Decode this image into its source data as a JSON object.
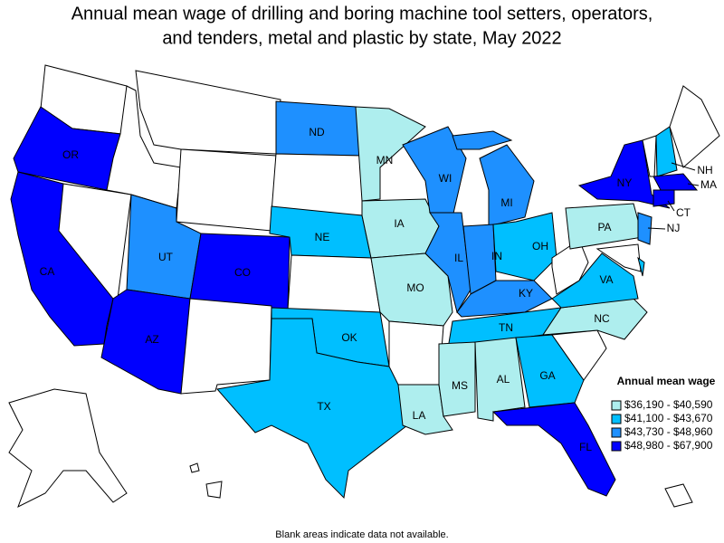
{
  "title": "Annual mean wage of drilling and boring machine tool setters, operators, and tenders, metal and plastic by state, May 2022",
  "legend": {
    "title": "Annual mean wage",
    "items": [
      {
        "label": "$36,190 - $40,590",
        "color": "#aeeeee"
      },
      {
        "label": "$41,100 - $43,670",
        "color": "#00bfff"
      },
      {
        "label": "$43,730 - $48,960",
        "color": "#1e90ff"
      },
      {
        "label": "$48,980 - $67,900",
        "color": "#0000ff"
      }
    ]
  },
  "states": [
    {
      "label": "OR",
      "color": "#0000ff"
    },
    {
      "label": "CA",
      "color": "#0000ff"
    },
    {
      "label": "AZ",
      "color": "#0000ff"
    },
    {
      "label": "CO",
      "color": "#0000ff"
    },
    {
      "label": "UT",
      "color": "#1e90ff"
    },
    {
      "label": "ND",
      "color": "#1e90ff"
    },
    {
      "label": "NE",
      "color": "#00bfff"
    },
    {
      "label": "OK",
      "color": "#00bfff"
    },
    {
      "label": "TX",
      "color": "#00bfff"
    },
    {
      "label": "MN",
      "color": "#aeeeee"
    },
    {
      "label": "IA",
      "color": "#aeeeee"
    },
    {
      "label": "MO",
      "color": "#aeeeee"
    },
    {
      "label": "LA",
      "color": "#aeeeee"
    },
    {
      "label": "WI",
      "color": "#1e90ff"
    },
    {
      "label": "IL",
      "color": "#1e90ff"
    },
    {
      "label": "MI",
      "color": "#1e90ff"
    },
    {
      "label": "IN",
      "color": "#1e90ff"
    },
    {
      "label": "OH",
      "color": "#00bfff"
    },
    {
      "label": "KY",
      "color": "#1e90ff"
    },
    {
      "label": "TN",
      "color": "#00bfff"
    },
    {
      "label": "MS",
      "color": "#aeeeee"
    },
    {
      "label": "AL",
      "color": "#aeeeee"
    },
    {
      "label": "GA",
      "color": "#00bfff"
    },
    {
      "label": "FL",
      "color": "#0000ff"
    },
    {
      "label": "NC",
      "color": "#aeeeee"
    },
    {
      "label": "VA",
      "color": "#00bfff"
    },
    {
      "label": "PA",
      "color": "#aeeeee"
    },
    {
      "label": "NY",
      "color": "#0000ff"
    },
    {
      "label": "NH",
      "color": "#00bfff"
    },
    {
      "label": "MA",
      "color": "#0000ff"
    },
    {
      "label": "CT",
      "color": "#0000ff"
    },
    {
      "label": "NJ",
      "color": "#1e90ff"
    }
  ],
  "footnote": "Blank areas indicate data not available."
}
